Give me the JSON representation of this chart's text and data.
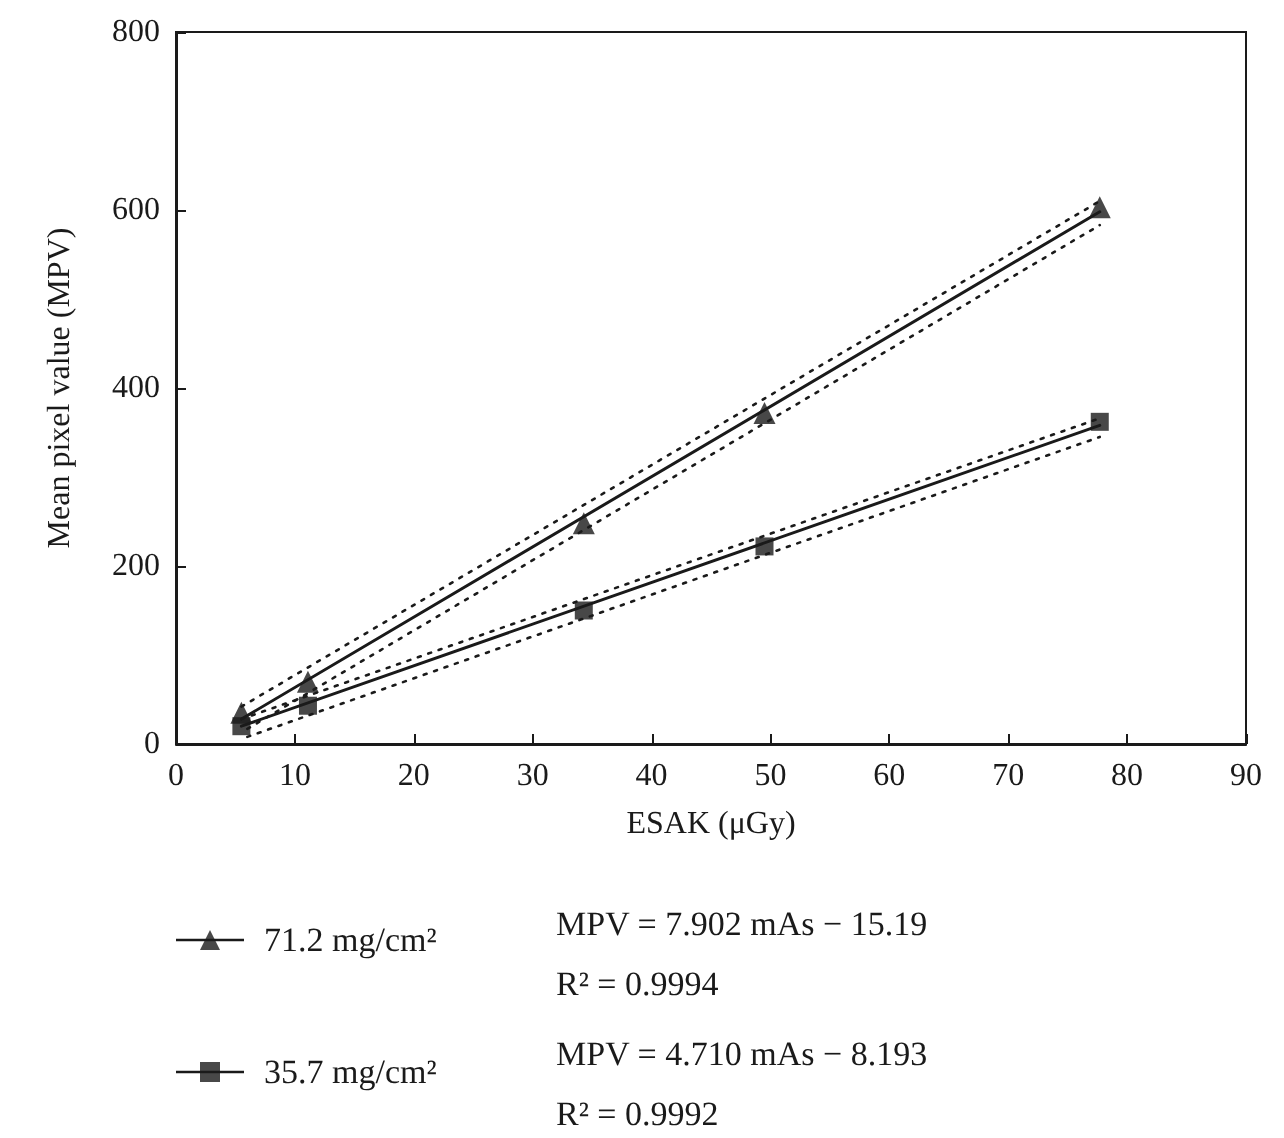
{
  "chart_data": {
    "type": "scatter",
    "xlabel": "ESAK (μGy)",
    "ylabel": "Mean pixel value (MPV)",
    "xlim": [
      0,
      90
    ],
    "xticks": [
      0,
      10,
      20,
      30,
      40,
      50,
      60,
      70,
      80,
      90
    ],
    "ylim": [
      0,
      800
    ],
    "yticks": [
      0,
      200,
      400,
      600,
      800
    ],
    "grid": false,
    "legend": "bottom",
    "series": [
      {
        "name": "71.2 mg/cm²",
        "marker": "triangle",
        "color": "#1a1a1a",
        "x": [
          5.5,
          11.1,
          34.3,
          49.5,
          77.7
        ],
        "values": [
          35,
          70,
          248,
          372,
          603
        ]
      },
      {
        "type": "line",
        "marker": "none",
        "line_style": "solid",
        "color": "#1a1a1a",
        "x": [
          5.5,
          77.7
        ],
        "values": [
          28,
          598
        ]
      },
      {
        "type": "line",
        "marker": "none",
        "line_style": "dotted",
        "color": "#1a1a1a",
        "x": [
          5.5,
          77.7
        ],
        "values": [
          42,
          610
        ]
      },
      {
        "type": "line",
        "marker": "none",
        "line_style": "dotted",
        "color": "#1a1a1a",
        "x": [
          6,
          77.7
        ],
        "values": [
          17,
          583
        ]
      },
      {
        "name": "35.7 mg/cm²",
        "marker": "square",
        "color": "#1a1a1a",
        "x": [
          5.5,
          11.1,
          34.3,
          49.5,
          77.7
        ],
        "values": [
          20,
          43,
          150,
          222,
          362
        ]
      },
      {
        "type": "line",
        "marker": "none",
        "line_style": "solid",
        "color": "#1a1a1a",
        "x": [
          5.5,
          77.7
        ],
        "values": [
          20,
          358
        ]
      },
      {
        "type": "line",
        "marker": "none",
        "line_style": "dotted",
        "color": "#1a1a1a",
        "x": [
          5.5,
          77.7
        ],
        "values": [
          28,
          366
        ]
      },
      {
        "type": "line",
        "marker": "none",
        "line_style": "dotted",
        "color": "#1a1a1a",
        "x": [
          6,
          77.7
        ],
        "values": [
          8,
          345
        ]
      }
    ],
    "annotations": [
      "MPV = 7.902 mAs − 15.19\nR² = 0.9994",
      "MPV = 4.710 mAs − 8.193\nR² = 0.9992"
    ]
  }
}
